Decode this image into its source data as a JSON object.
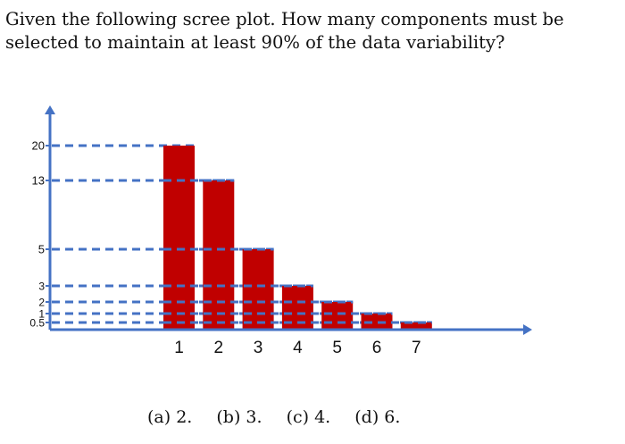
{
  "question": {
    "text": "Given the following scree plot. How many components must be selected to maintain at least 90% of the data variability?"
  },
  "chart_data": {
    "type": "bar",
    "title": "",
    "xlabel": "",
    "ylabel": "",
    "categories": [
      "1",
      "2",
      "3",
      "4",
      "5",
      "6",
      "7"
    ],
    "values": [
      20,
      13,
      5,
      3,
      2,
      1,
      0.5
    ],
    "y_ticks": [
      {
        "label": "20",
        "value": 20
      },
      {
        "label": "13",
        "value": 13
      },
      {
        "label": "5",
        "value": 5
      },
      {
        "label": "3",
        "value": 3
      },
      {
        "label": "2",
        "value": 2
      },
      {
        "label": "1",
        "value": 1
      },
      {
        "label": "0.5",
        "value": 0.5
      }
    ],
    "bar_color": "#c00000",
    "axis_color": "#4472c4",
    "guide_line_color": "#4472c4",
    "grid": false,
    "legend": "none"
  },
  "options": [
    {
      "label": "(a) 2."
    },
    {
      "label": "(b) 3."
    },
    {
      "label": "(c) 4."
    },
    {
      "label": "(d) 6."
    }
  ]
}
